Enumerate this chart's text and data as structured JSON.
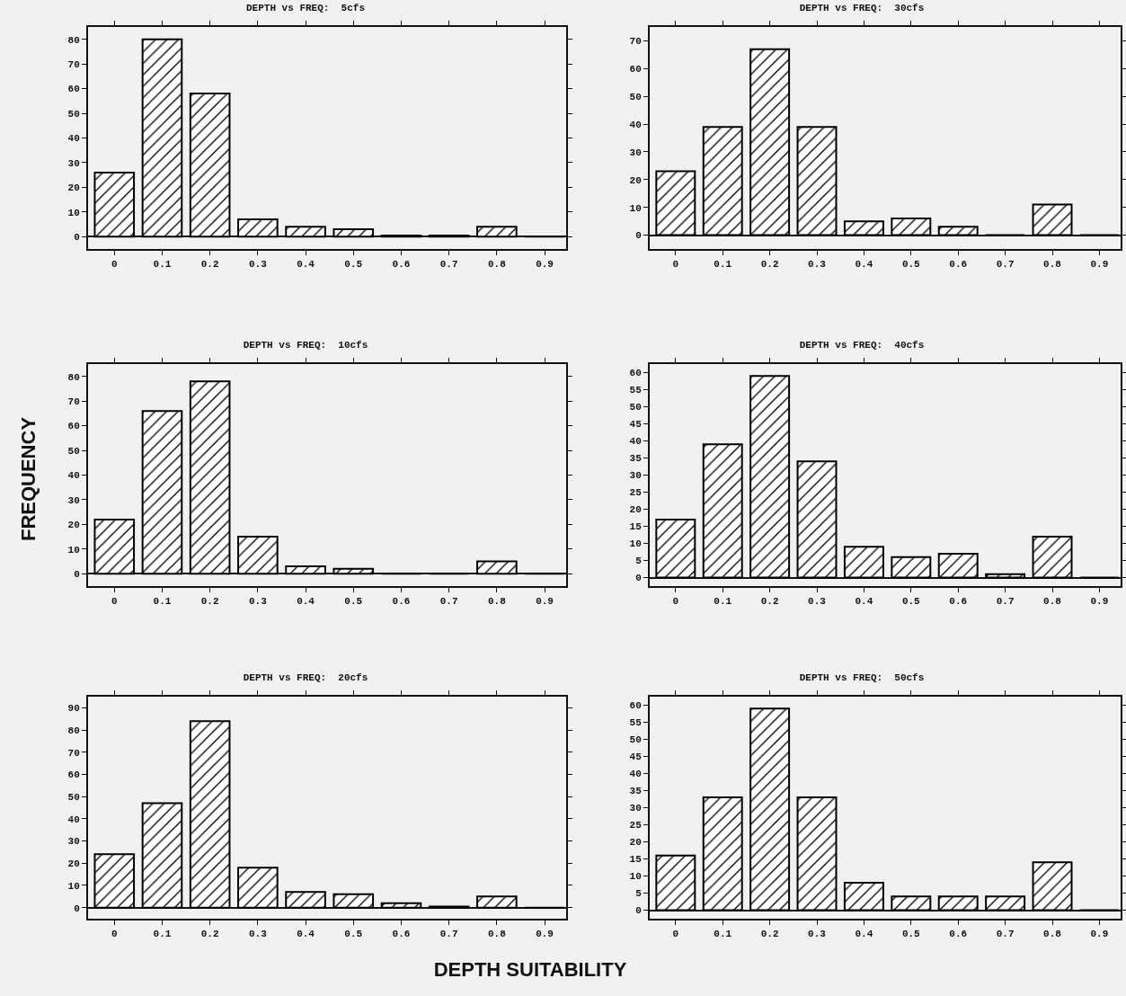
{
  "chart_data": [
    {
      "type": "bar",
      "title": "DEPTH vs FREQ:  5cfs",
      "categories": [
        "0",
        "0.1",
        "0.2",
        "0.3",
        "0.4",
        "0.5",
        "0.6",
        "0.7",
        "0.8",
        "0.9"
      ],
      "values": [
        26,
        80,
        58,
        7,
        4,
        3,
        0.5,
        0.5,
        4,
        0
      ],
      "color": "#000000",
      "ylim": [
        -5,
        85
      ],
      "yticks": [
        0,
        10,
        20,
        30,
        40,
        50,
        60,
        70,
        80
      ]
    },
    {
      "type": "bar",
      "title": "DEPTH vs FREQ:  30cfs",
      "categories": [
        "0",
        "0.1",
        "0.2",
        "0.3",
        "0.4",
        "0.5",
        "0.6",
        "0.7",
        "0.8",
        "0.9"
      ],
      "values": [
        23,
        39,
        67,
        39,
        5,
        6,
        3,
        0,
        11,
        0
      ],
      "color": "#000000",
      "ylim": [
        -5,
        75
      ],
      "yticks": [
        0,
        10,
        20,
        30,
        40,
        50,
        60,
        70
      ]
    },
    {
      "type": "bar",
      "title": "DEPTH vs FREQ:  10cfs",
      "ylabel": "FREQUENCY",
      "categories": [
        "0",
        "0.1",
        "0.2",
        "0.3",
        "0.4",
        "0.5",
        "0.6",
        "0.7",
        "0.8",
        "0.9"
      ],
      "values": [
        22,
        66,
        78,
        15,
        3,
        2,
        0,
        0,
        5,
        0
      ],
      "color": "#000000",
      "ylim": [
        -5,
        85
      ],
      "yticks": [
        0,
        10,
        20,
        30,
        40,
        50,
        60,
        70,
        80
      ]
    },
    {
      "type": "bar",
      "title": "DEPTH vs FREQ:  40cfs",
      "categories": [
        "0",
        "0.1",
        "0.2",
        "0.3",
        "0.4",
        "0.5",
        "0.6",
        "0.7",
        "0.8",
        "0.9"
      ],
      "values": [
        17,
        39,
        59,
        34,
        9,
        6,
        7,
        1,
        12,
        0
      ],
      "color": "#000000",
      "ylim": [
        -2.5,
        62.5
      ],
      "yticks": [
        0,
        5,
        10,
        15,
        20,
        25,
        30,
        35,
        40,
        45,
        50,
        55,
        60
      ]
    },
    {
      "type": "bar",
      "title": "DEPTH vs FREQ:  20cfs",
      "xlabel": "DEPTH SUITABILITY",
      "categories": [
        "0",
        "0.1",
        "0.2",
        "0.3",
        "0.4",
        "0.5",
        "0.6",
        "0.7",
        "0.8",
        "0.9"
      ],
      "values": [
        24,
        47,
        84,
        18,
        7,
        6,
        2,
        0.5,
        5,
        0
      ],
      "color": "#000000",
      "ylim": [
        -5,
        95
      ],
      "yticks": [
        0,
        10,
        20,
        30,
        40,
        50,
        60,
        70,
        80,
        90
      ]
    },
    {
      "type": "bar",
      "title": "DEPTH vs FREQ:  50cfs",
      "categories": [
        "0",
        "0.1",
        "0.2",
        "0.3",
        "0.4",
        "0.5",
        "0.6",
        "0.7",
        "0.8",
        "0.9"
      ],
      "values": [
        16,
        33,
        59,
        33,
        8,
        4,
        4,
        4,
        14,
        0
      ],
      "color": "#000000",
      "ylim": [
        -2.5,
        62.5
      ],
      "yticks": [
        0,
        5,
        10,
        15,
        20,
        25,
        30,
        35,
        40,
        45,
        50,
        55,
        60
      ]
    }
  ]
}
